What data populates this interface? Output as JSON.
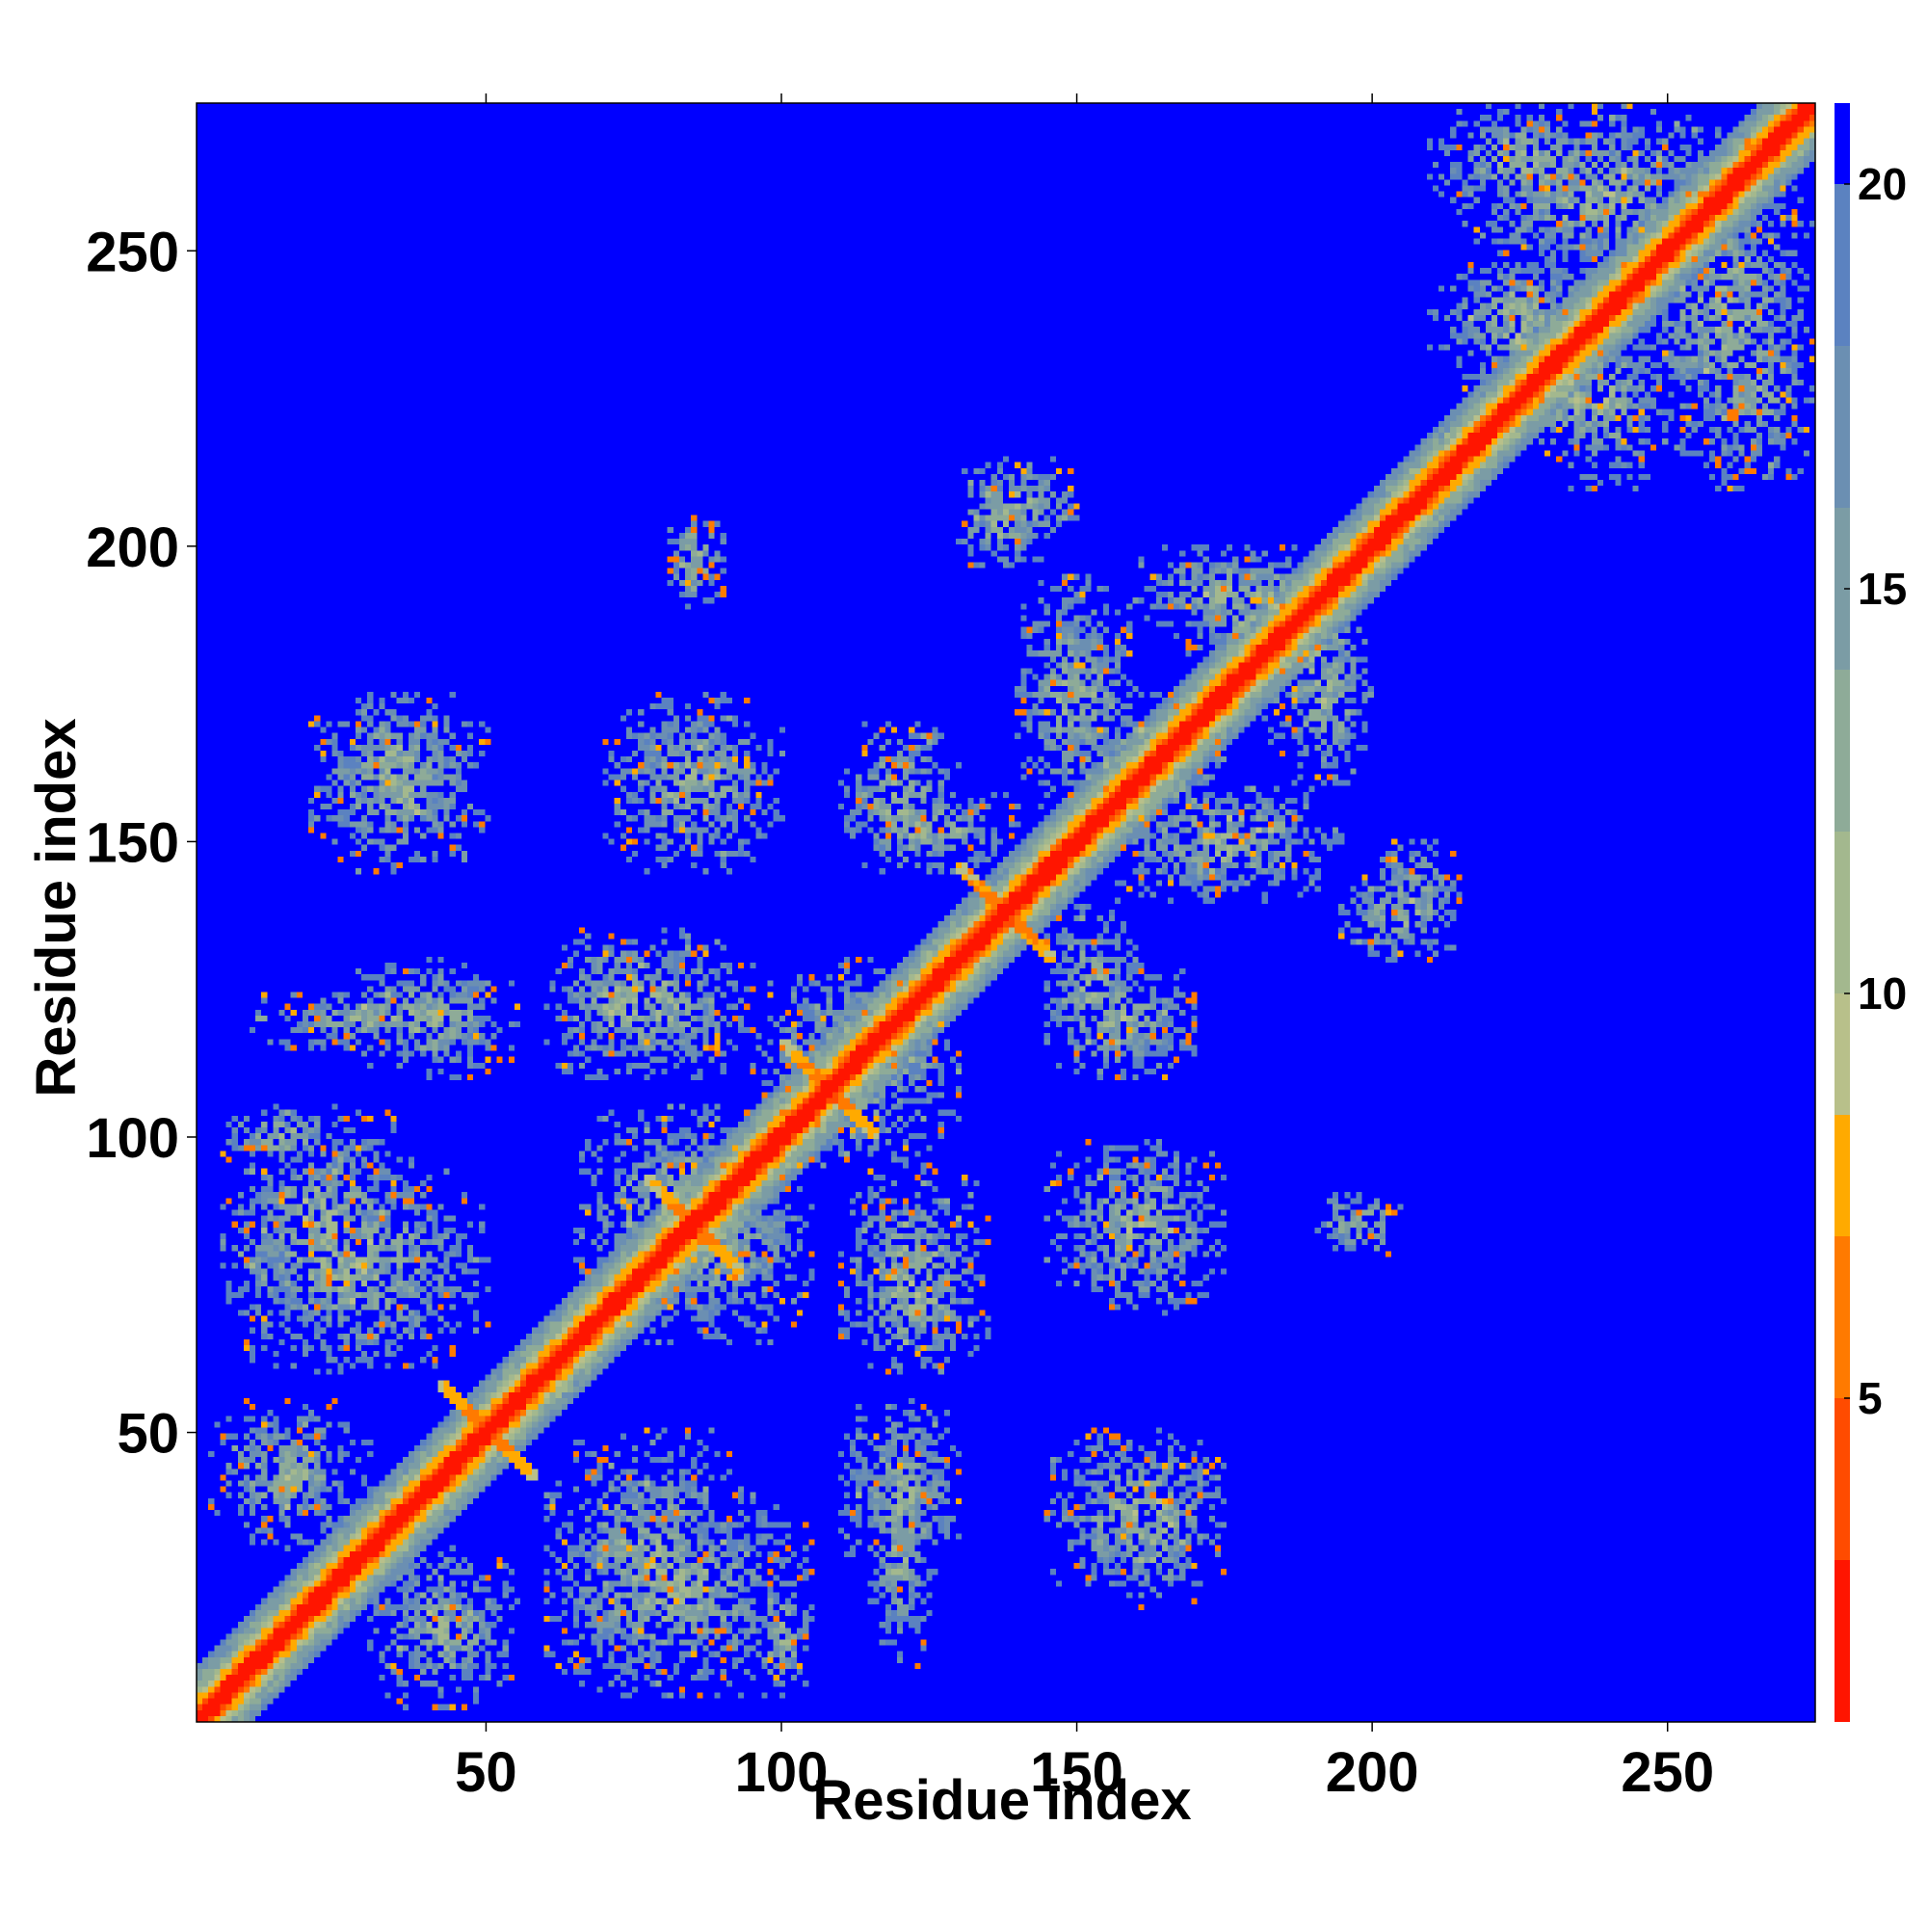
{
  "chart_data": {
    "type": "heatmap",
    "description_of_values": "pairwise residue distance map (symmetric)",
    "xlabel": "Residue index",
    "ylabel": "Residue index",
    "xlim": [
      1,
      275
    ],
    "ylim": [
      1,
      275
    ],
    "xticks": [
      50,
      100,
      150,
      200,
      250
    ],
    "yticks": [
      50,
      100,
      150,
      200,
      250
    ],
    "n_residues": 275,
    "colorbar": {
      "range": [
        1,
        21
      ],
      "ticks": [
        5,
        10,
        15,
        20
      ],
      "colors": [
        {
          "upto": 3,
          "color": "#ff1500"
        },
        {
          "upto": 5,
          "color": "#ff4b00"
        },
        {
          "upto": 7,
          "color": "#ff7a00"
        },
        {
          "upto": 8.5,
          "color": "#ffaa00"
        },
        {
          "upto": 10,
          "color": "#b8c08a"
        },
        {
          "upto": 12,
          "color": "#a3b88e"
        },
        {
          "upto": 14,
          "color": "#8eab98"
        },
        {
          "upto": 16,
          "color": "#7b9ca5"
        },
        {
          "upto": 18,
          "color": "#6b8fb2"
        },
        {
          "upto": 20,
          "color": "#5b82c0"
        },
        {
          "upto": 21,
          "color": "#0000ff"
        }
      ],
      "background_color": "#0000ff"
    },
    "diagonal_band": {
      "core_halfwidth": 2,
      "inner_halfwidth": 4,
      "outer_halfwidth": 9
    },
    "contact_regions": [
      {
        "x": [
          30,
          55
        ],
        "y": [
          3,
          30
        ]
      },
      {
        "x": [
          60,
          105
        ],
        "y": [
          5,
          40
        ]
      },
      {
        "x": [
          115,
          125
        ],
        "y": [
          10,
          50
        ]
      },
      {
        "x": [
          145,
          175
        ],
        "y": [
          20,
          50
        ]
      },
      {
        "x": [
          5,
          50
        ],
        "y": [
          60,
          95
        ]
      },
      {
        "x": [
          65,
          100
        ],
        "y": [
          70,
          105
        ]
      },
      {
        "x": [
          110,
          135
        ],
        "y": [
          60,
          85
        ]
      },
      {
        "x": [
          145,
          175
        ],
        "y": [
          70,
          100
        ]
      },
      {
        "x": [
          5,
          25
        ],
        "y": [
          95,
          105
        ]
      },
      {
        "x": [
          25,
          55
        ],
        "y": [
          110,
          130
        ]
      },
      {
        "x": [
          60,
          95
        ],
        "y": [
          110,
          135
        ]
      },
      {
        "x": [
          95,
          130
        ],
        "y": [
          95,
          130
        ]
      },
      {
        "x": [
          145,
          170
        ],
        "y": [
          110,
          130
        ]
      },
      {
        "x": [
          20,
          50
        ],
        "y": [
          150,
          175
        ]
      },
      {
        "x": [
          70,
          100
        ],
        "y": [
          145,
          175
        ]
      },
      {
        "x": [
          110,
          140
        ],
        "y": [
          145,
          160
        ]
      },
      {
        "x": [
          150,
          175
        ],
        "y": [
          150,
          170
        ]
      },
      {
        "x": [
          155,
          195
        ],
        "y": [
          140,
          160
        ]
      },
      {
        "x": [
          80,
          90
        ],
        "y": [
          190,
          205
        ]
      },
      {
        "x": [
          130,
          150
        ],
        "y": [
          200,
          215
        ]
      },
      {
        "x": [
          165,
          200
        ],
        "y": [
          180,
          200
        ]
      },
      {
        "x": [
          185,
          200
        ],
        "y": [
          160,
          190
        ]
      },
      {
        "x": [
          195,
          215
        ],
        "y": [
          130,
          145
        ]
      },
      {
        "x": [
          195,
          205
        ],
        "y": [
          80,
          90
        ]
      },
      {
        "x": [
          210,
          240
        ],
        "y": [
          230,
          250
        ]
      },
      {
        "x": [
          225,
          245
        ],
        "y": [
          215,
          235
        ]
      },
      {
        "x": [
          210,
          245
        ],
        "y": [
          255,
          275
        ]
      },
      {
        "x": [
          245,
          275
        ],
        "y": [
          215,
          265
        ]
      }
    ],
    "cross_motifs": [
      {
        "x": 50,
        "y": 50
      },
      {
        "x": 85,
        "y": 85
      },
      {
        "x": 108,
        "y": 108
      },
      {
        "x": 138,
        "y": 138
      }
    ]
  }
}
